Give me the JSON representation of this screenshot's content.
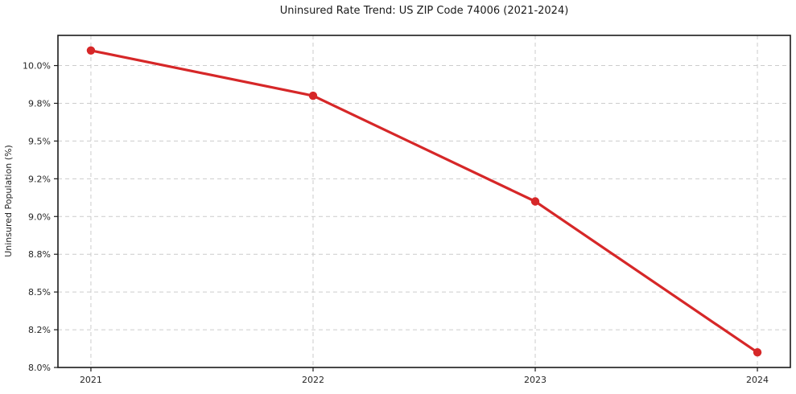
{
  "chart_data": {
    "type": "line",
    "title": "Uninsured Rate Trend: US ZIP Code 74006 (2021-2024)",
    "xlabel": "",
    "ylabel": "Uninsured Population (%)",
    "x": [
      "2021",
      "2022",
      "2023",
      "2024"
    ],
    "values": [
      10.1,
      9.8,
      9.1,
      8.1
    ],
    "ylim": [
      8.0,
      10.2
    ],
    "ytick_values": [
      8.0,
      8.25,
      8.5,
      8.75,
      9.0,
      9.25,
      9.5,
      9.75,
      10.0
    ],
    "ytick_labels": [
      "8.0%",
      "8.2%",
      "8.5%",
      "8.8%",
      "9.0%",
      "9.2%",
      "9.5%",
      "9.8%",
      "10.0%"
    ],
    "grid": "dashed",
    "legend": "none",
    "line_color": "#d62728",
    "marker_color": "#d62728",
    "grid_color": "#cccccc",
    "spine_color": "#1a1a1a",
    "marker": "circle"
  }
}
